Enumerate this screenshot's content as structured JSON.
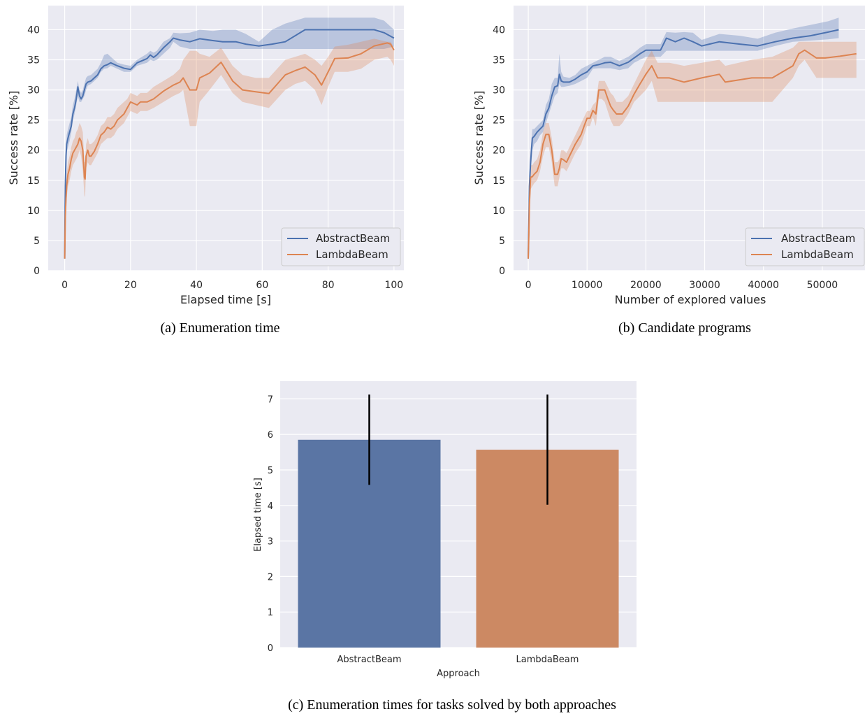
{
  "colors": {
    "abstractbeam": "#4c72b0",
    "lambdabeam": "#dd8452",
    "abstractbeam_bar": "#5a75a4",
    "lambdabeam_bar": "#cc8963",
    "panel_bg": "#eaeaf2",
    "grid": "#ffffff"
  },
  "chart_data": [
    {
      "id": "a",
      "type": "line",
      "caption": "(a) Enumeration time",
      "xlabel": "Elapsed time [s]",
      "ylabel": "Success rate [%]",
      "xlim": [
        -5,
        103
      ],
      "ylim": [
        0,
        44
      ],
      "xticks": [
        0,
        20,
        40,
        60,
        80,
        100
      ],
      "xtick_labels": [
        "0",
        "20",
        "40",
        "60",
        "80",
        "100"
      ],
      "yticks": [
        0,
        5,
        10,
        15,
        20,
        25,
        30,
        35,
        40
      ],
      "ytick_labels": [
        "0",
        "5",
        "10",
        "15",
        "20",
        "25",
        "30",
        "35",
        "40"
      ],
      "grid": true,
      "legend": "lower-right",
      "series": [
        {
          "name": "AbstractBeam",
          "color": "#4c72b0",
          "x": [
            0,
            0.1,
            0.2,
            0.4,
            0.6,
            1,
            1.5,
            2,
            2.5,
            3,
            3.5,
            4,
            4.5,
            5,
            5.5,
            6,
            6.5,
            7,
            8,
            9,
            10,
            11,
            12,
            13,
            14,
            16,
            18,
            20,
            22,
            25,
            26,
            27,
            28,
            30,
            32,
            33,
            35,
            38,
            41,
            45,
            48,
            52,
            55,
            59,
            63,
            67,
            73,
            80,
            88,
            94,
            97,
            100
          ],
          "y": [
            2,
            8,
            14,
            19,
            21,
            22,
            23,
            24,
            26,
            27,
            28.5,
            30.5,
            29,
            28.5,
            29,
            30,
            31,
            31.3,
            31.5,
            32,
            32.5,
            33.5,
            34,
            34.2,
            34.5,
            34,
            33.6,
            33.4,
            34.5,
            35.2,
            35.8,
            35.4,
            35.8,
            37,
            38,
            38.6,
            38.3,
            38,
            38.5,
            38.2,
            38,
            38,
            37.6,
            37.3,
            37.6,
            38,
            40,
            40,
            40,
            40,
            39.5,
            38.6
          ],
          "lower": [
            2,
            6,
            12,
            17,
            19.5,
            20.5,
            21.5,
            23,
            25,
            26,
            27.5,
            29,
            28,
            28,
            28.5,
            29,
            30,
            30.7,
            31,
            31.5,
            32,
            33,
            33.5,
            33.6,
            34,
            33.5,
            33,
            33,
            34,
            34.5,
            35,
            34.8,
            35,
            36,
            37,
            38,
            37.2,
            36.8,
            36.8,
            36.8,
            36.8,
            36.8,
            36.8,
            36.8,
            36.8,
            36.8,
            36.8,
            36.8,
            36.8,
            36.8,
            36.8,
            37.2
          ],
          "upper": [
            3,
            10,
            16,
            20.5,
            22.5,
            23.5,
            24.5,
            25.5,
            27.5,
            28.5,
            30,
            31.5,
            30,
            29.5,
            30,
            31,
            32,
            32.3,
            32.5,
            33,
            33.5,
            34.5,
            35.8,
            36,
            35.5,
            34.5,
            34.2,
            34,
            35,
            36,
            36.5,
            36.2,
            36.5,
            38,
            38.6,
            39.5,
            39.4,
            39.5,
            40,
            39.8,
            40,
            40,
            39.3,
            38,
            40,
            41,
            42,
            42,
            42,
            42,
            41.5,
            40
          ]
        },
        {
          "name": "LambdaBeam",
          "color": "#dd8452",
          "x": [
            0,
            0.1,
            0.2,
            0.4,
            0.6,
            1,
            1.5,
            2,
            2.5,
            3,
            3.5,
            4,
            4.5,
            5,
            5.5,
            6,
            6.2,
            6.5,
            7,
            7.5,
            8,
            9,
            10,
            11,
            12,
            13,
            14,
            15,
            16,
            18,
            19,
            20,
            22,
            23,
            25,
            27,
            30,
            33,
            35,
            36,
            38,
            40,
            41,
            44,
            47.5,
            51,
            54,
            58,
            62,
            67,
            70,
            73,
            76,
            78,
            80,
            82,
            86,
            90,
            94,
            98,
            99,
            100
          ],
          "y": [
            2,
            5,
            9,
            12,
            14,
            16,
            17,
            18.5,
            19.5,
            20,
            20.5,
            21,
            22,
            21.5,
            20,
            15.5,
            15.2,
            19,
            20,
            19,
            19,
            19.8,
            21,
            22.5,
            23,
            23.8,
            23.5,
            24,
            25,
            26,
            27,
            28,
            27.5,
            28,
            28,
            28.5,
            29.8,
            30.8,
            31.3,
            32,
            30,
            30,
            32,
            32.8,
            34.6,
            31.5,
            30,
            29.7,
            29.4,
            32.5,
            33.2,
            33.8,
            32.5,
            30.8,
            33,
            35.2,
            35.3,
            36,
            37.3,
            37.8,
            37.6,
            36.6
          ],
          "lower": [
            1.5,
            3,
            7,
            10,
            12,
            14,
            15,
            16.5,
            17.5,
            18,
            18.5,
            19,
            20,
            19,
            16.5,
            12.5,
            12.2,
            17,
            18,
            17.5,
            17.5,
            18.5,
            19.5,
            21,
            21.5,
            22,
            22,
            22.5,
            23.5,
            24.5,
            25.5,
            26.5,
            26,
            26.5,
            26.5,
            27,
            28,
            29,
            29.5,
            30,
            24,
            24,
            28,
            30,
            32.5,
            29.5,
            28,
            27.5,
            27,
            30,
            31,
            31.5,
            30,
            27.5,
            30.5,
            33,
            33,
            33.5,
            35,
            35.5,
            35,
            34
          ],
          "upper": [
            3,
            7,
            11,
            14,
            16,
            18,
            19,
            20.5,
            21.5,
            22,
            23,
            23.5,
            24.5,
            24,
            23,
            18,
            18,
            21,
            22,
            21,
            21,
            21.5,
            22.5,
            24,
            24.5,
            25.5,
            25.5,
            26,
            27,
            28,
            28.5,
            29.5,
            29,
            29.5,
            29.5,
            30.5,
            31.5,
            32.5,
            33.5,
            35,
            36.5,
            36.5,
            36,
            35.5,
            37,
            34,
            32.5,
            32,
            32,
            35,
            35.5,
            36,
            35,
            34,
            35.5,
            37.2,
            37.5,
            38,
            38.5,
            38,
            38,
            37
          ]
        }
      ]
    },
    {
      "id": "b",
      "type": "line",
      "caption": "(b) Candidate programs",
      "xlabel": "Number of explored values",
      "ylabel": "Success rate [%]",
      "xlim": [
        -2500,
        57500
      ],
      "ylim": [
        0,
        44
      ],
      "xticks": [
        0,
        10000,
        20000,
        30000,
        40000,
        50000
      ],
      "xtick_labels": [
        "0",
        "10000",
        "20000",
        "30000",
        "40000",
        "50000"
      ],
      "yticks": [
        0,
        5,
        10,
        15,
        20,
        25,
        30,
        35,
        40
      ],
      "ytick_labels": [
        "0",
        "5",
        "10",
        "15",
        "20",
        "25",
        "30",
        "35",
        "40"
      ],
      "grid": true,
      "legend": "lower-right",
      "series": [
        {
          "name": "AbstractBeam",
          "color": "#4c72b0",
          "x": [
            0,
            100,
            200,
            400,
            700,
            1000,
            1500,
            2000,
            2500,
            3000,
            3500,
            4000,
            4500,
            5000,
            5300,
            5600,
            6000,
            7000,
            8000,
            9000,
            10000,
            11000,
            12000,
            13000,
            14000,
            15500,
            17000,
            18000,
            19000,
            20000,
            21000,
            22500,
            23500,
            25000,
            26500,
            28000,
            29500,
            32500,
            36000,
            39000,
            42000,
            45000,
            48000,
            51000,
            52800
          ],
          "y": [
            2,
            8,
            14,
            18,
            22,
            22.3,
            23,
            23.5,
            24,
            26,
            27,
            29,
            30.5,
            30.7,
            32.6,
            31.5,
            31.3,
            31.3,
            31.8,
            32.5,
            33,
            34,
            34.2,
            34.5,
            34.6,
            34,
            34.6,
            35.3,
            36,
            36.6,
            36.6,
            36.6,
            38.6,
            38,
            38.6,
            38,
            37.3,
            38,
            37.6,
            37.3,
            38,
            38.6,
            39,
            39.6,
            40
          ],
          "lower": [
            1.5,
            6,
            12,
            16,
            20,
            21,
            21.5,
            22.5,
            23,
            24.5,
            26,
            27.5,
            29,
            29.5,
            31,
            30.5,
            30.5,
            30.7,
            31,
            31.5,
            32,
            33.5,
            33.6,
            33.6,
            33.6,
            33.3,
            33.6,
            34.5,
            35,
            35.5,
            35.5,
            35.5,
            36.5,
            36.5,
            36.5,
            36.5,
            36.5,
            36.5,
            36.5,
            36.5,
            37.3,
            38,
            38.2,
            38.4,
            38.6
          ],
          "upper": [
            3,
            10,
            16,
            20,
            23.5,
            23.5,
            24,
            24.5,
            25,
            27.5,
            28.5,
            31,
            32,
            32,
            36,
            33,
            32.2,
            32,
            32.5,
            33.5,
            34,
            34.5,
            35,
            35.5,
            35.5,
            34.8,
            35.5,
            36.2,
            37,
            37.6,
            37.6,
            37.6,
            39.6,
            39.5,
            39.6,
            39.5,
            38.3,
            39.3,
            39,
            38.5,
            39.5,
            40.2,
            40.8,
            41.4,
            42
          ]
        },
        {
          "name": "LambdaBeam",
          "color": "#dd8452",
          "x": [
            0,
            100,
            200,
            400,
            700,
            1000,
            1500,
            2000,
            2500,
            3000,
            3500,
            4000,
            4500,
            5000,
            5300,
            5600,
            6000,
            6500,
            7000,
            8000,
            9000,
            9500,
            10000,
            10500,
            11000,
            11500,
            12000,
            12500,
            13000,
            13500,
            14000,
            14500,
            15000,
            15500,
            16000,
            17000,
            18000,
            19000,
            20000,
            21000,
            22000,
            24000,
            26500,
            29500,
            32500,
            33500,
            38000,
            41500,
            45000,
            46000,
            47000,
            49000,
            50500,
            53000,
            55800
          ],
          "y": [
            2,
            6,
            11,
            15.5,
            15.6,
            16,
            16.5,
            18,
            21,
            22.6,
            22.6,
            20,
            16,
            16,
            17,
            18.6,
            18.4,
            18,
            19,
            21,
            22.6,
            24,
            25.3,
            25.3,
            26.6,
            26,
            30,
            30,
            30,
            28.6,
            27.3,
            26.6,
            26,
            26,
            26,
            27.3,
            29.3,
            31,
            32.6,
            34,
            32,
            32,
            31.3,
            32,
            32.6,
            31.3,
            32,
            32,
            34,
            36,
            36.6,
            35.3,
            35.3,
            35.6,
            36
          ],
          "lower": [
            1.5,
            4,
            9,
            13.5,
            14,
            14.5,
            15,
            16.5,
            19,
            20.5,
            20.5,
            18,
            14,
            14,
            15.5,
            17,
            17,
            16.5,
            17.5,
            19.5,
            21,
            22.5,
            24,
            24,
            25.5,
            24,
            28.5,
            28.5,
            28,
            26.5,
            25,
            24,
            24,
            24,
            24.5,
            26,
            28,
            29,
            30,
            31.5,
            28,
            28,
            28,
            28,
            28,
            28,
            28,
            28,
            32,
            34,
            35,
            32,
            32,
            32,
            32
          ],
          "upper": [
            3,
            8,
            13,
            17.5,
            17.5,
            18,
            18.5,
            20,
            23,
            24.5,
            24.5,
            22,
            18,
            18,
            18.5,
            20,
            20,
            19.5,
            20.5,
            22.5,
            24.5,
            25.5,
            26.5,
            26.5,
            27.5,
            28,
            31.5,
            31.5,
            31.5,
            30.5,
            29.5,
            29,
            28,
            28,
            28,
            29,
            31,
            33,
            35,
            36.5,
            34.5,
            34.5,
            34,
            34.5,
            35,
            34,
            35,
            35.5,
            37,
            38,
            38,
            38,
            38,
            38,
            38
          ]
        }
      ]
    },
    {
      "id": "c",
      "type": "bar",
      "caption": "(c) Enumeration times for tasks solved by both approaches",
      "xlabel": "Approach",
      "ylabel": "Elapsed time [s]",
      "categories": [
        "AbstractBeam",
        "LambdaBeam"
      ],
      "values": [
        5.85,
        5.57
      ],
      "error_low": [
        4.58,
        4.02
      ],
      "error_high": [
        7.12,
        7.12
      ],
      "bar_colors": [
        "#5a75a4",
        "#cc8963"
      ],
      "ylim": [
        0,
        7.5
      ],
      "yticks": [
        0,
        1,
        2,
        3,
        4,
        5,
        6,
        7
      ],
      "ytick_labels": [
        "0",
        "1",
        "2",
        "3",
        "4",
        "5",
        "6",
        "7"
      ],
      "grid": true
    }
  ]
}
